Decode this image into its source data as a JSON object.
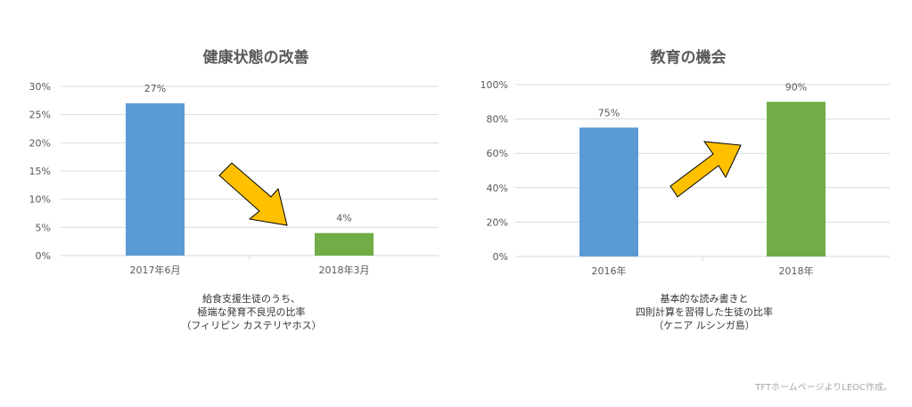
{
  "chart_data": [
    {
      "type": "bar",
      "title": "健康状態の改善",
      "categories": [
        "2017年6月",
        "2018年3月"
      ],
      "values": [
        27,
        4
      ],
      "data_labels": [
        "27%",
        "4%"
      ],
      "ylim": [
        0,
        30
      ],
      "yticks": [
        "0%",
        "5%",
        "10%",
        "15%",
        "20%",
        "25%",
        "30%"
      ],
      "grid": true,
      "bar_colors": [
        "#5b9bd5",
        "#70ad47"
      ],
      "arrow": "down",
      "caption": [
        "給食支援生徒のうち、",
        "極端な発育不良児の比率",
        "（フィリピン カステリヤホス）"
      ]
    },
    {
      "type": "bar",
      "title": "教育の機会",
      "categories": [
        "2016年",
        "2018年"
      ],
      "values": [
        75,
        90
      ],
      "data_labels": [
        "75%",
        "90%"
      ],
      "ylim": [
        0,
        100
      ],
      "yticks": [
        "0%",
        "20%",
        "40%",
        "60%",
        "80%",
        "100%"
      ],
      "grid": true,
      "bar_colors": [
        "#5b9bd5",
        "#70ad47"
      ],
      "arrow": "up",
      "caption": [
        "基本的な読み書きと",
        "四則計算を習得した生徒の比率",
        "（ケニア ルシンガ島）"
      ]
    }
  ],
  "footer": {
    "note": "TFTホームページよりLEOC作成。"
  },
  "colors": {
    "arrow_fill": "#ffc000",
    "gridline": "#d9d9d9",
    "text": "#595959"
  }
}
